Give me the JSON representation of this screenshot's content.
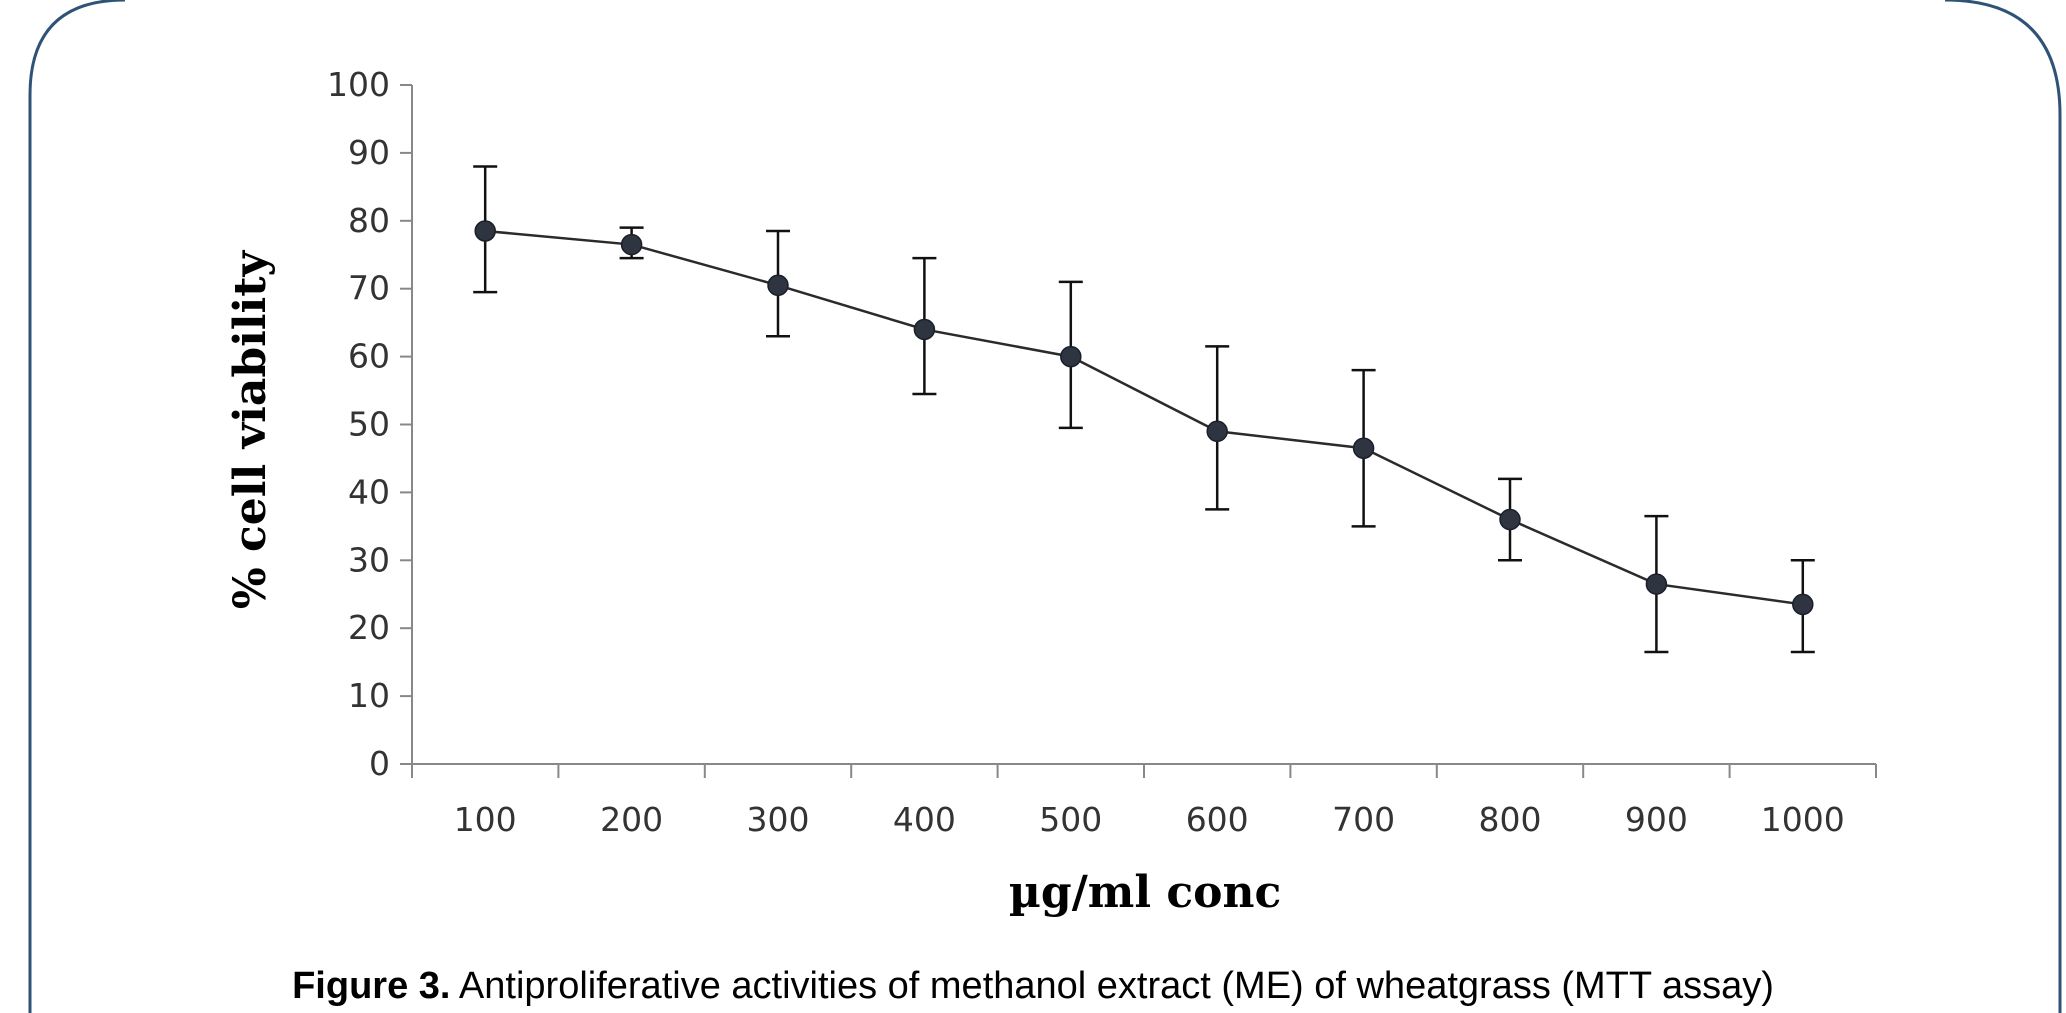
{
  "chart_data": {
    "type": "line",
    "title": "",
    "xlabel": "µg/ml conc",
    "ylabel": "% cell viability",
    "categories": [
      "100",
      "200",
      "300",
      "400",
      "500",
      "600",
      "700",
      "800",
      "900",
      "1000"
    ],
    "series": [
      {
        "values": [
          78.5,
          76.5,
          70.5,
          64.0,
          60.0,
          49.0,
          46.5,
          36.0,
          26.5,
          23.5
        ],
        "error_upper": [
          88.0,
          79.0,
          78.5,
          74.5,
          71.0,
          61.5,
          58.0,
          42.0,
          36.5,
          30.0
        ],
        "error_lower": [
          69.5,
          74.5,
          63.0,
          54.5,
          49.5,
          37.5,
          35.0,
          30.0,
          16.5,
          16.5
        ]
      }
    ],
    "ylim": [
      0,
      100
    ],
    "yticks": [
      0,
      10,
      20,
      30,
      40,
      50,
      60,
      70,
      80,
      90,
      100
    ],
    "grid": false,
    "legend": "none",
    "colors": {
      "line": "#2b2b2b",
      "marker": "#2e3440",
      "axis": "#888888"
    }
  },
  "caption": {
    "label": "Figure 3.",
    "text": " Antiproliferative activities of methanol extract (ME) of wheatgrass (MTT assay)"
  }
}
